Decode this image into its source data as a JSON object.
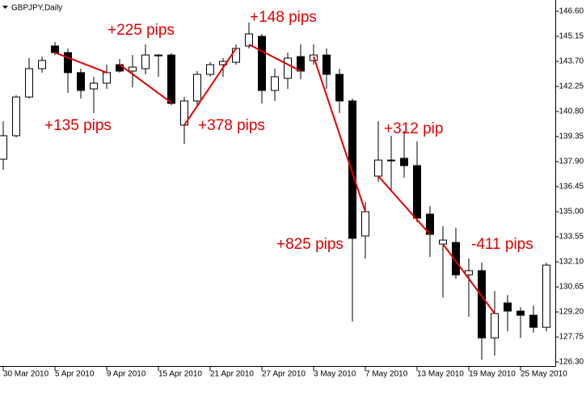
{
  "chart_data": {
    "type": "candlestick",
    "title": "GBPJPY,Daily",
    "categories": [
      "30 Mar 2010",
      null,
      null,
      null,
      "5 Apr 2010",
      null,
      null,
      null,
      "9 Apr 2010",
      null,
      null,
      null,
      "15 Apr 2010",
      null,
      null,
      null,
      "21 Apr 2010",
      null,
      null,
      null,
      "27 Apr 2010",
      null,
      null,
      null,
      "3 May 2010",
      null,
      null,
      null,
      "7 May 2010",
      null,
      null,
      null,
      "13 May 2010",
      null,
      null,
      null,
      "19 May 2010",
      null,
      null,
      null,
      "25 May 2010",
      null,
      null
    ],
    "open": [
      138.04,
      139.4,
      141.64,
      143.28,
      144.59,
      144.21,
      143.05,
      142.11,
      142.44,
      143.51,
      143.14,
      143.28,
      144.05,
      144.07,
      140.01,
      141.41,
      142.95,
      143.51,
      143.65,
      144.59,
      145.15,
      142.02,
      142.72,
      143.98,
      143.75,
      144.07,
      142.95,
      141.41,
      133.6,
      137.06,
      137.95,
      138.09,
      137.67,
      134.86,
      133.13,
      133.22,
      131.35,
      131.59,
      127.7,
      129.72,
      129.25,
      129.01,
      128.31
    ],
    "high": [
      140.24,
      141.74,
      143.89,
      143.98,
      144.82,
      144.45,
      143.28,
      142.81,
      143.51,
      143.84,
      144.07,
      144.68,
      144.12,
      144.17,
      141.64,
      143.14,
      143.65,
      143.89,
      144.68,
      145.95,
      145.29,
      143.28,
      144.21,
      144.68,
      144.68,
      144.45,
      143.28,
      141.55,
      135.56,
      140.24,
      139.4,
      139.68,
      139.07,
      135.33,
      134.16,
      134.07,
      132.29,
      132.05,
      130.42,
      130.18,
      129.48,
      129.57,
      132.05
    ],
    "low": [
      137.43,
      139.3,
      141.55,
      143.05,
      144.07,
      141.88,
      141.55,
      140.71,
      142.11,
      143.05,
      142.2,
      142.95,
      142.81,
      141.17,
      138.93,
      141.17,
      142.81,
      142.81,
      143.51,
      144.45,
      141.27,
      141.41,
      142.11,
      142.67,
      143.51,
      142.11,
      140.71,
      128.64,
      132.29,
      136.73,
      136.26,
      136.97,
      134.39,
      132.38,
      130.04,
      131.12,
      128.92,
      126.44,
      126.67,
      128.08,
      127.7,
      128.0,
      128.08
    ],
    "close": [
      139.4,
      141.64,
      143.28,
      143.75,
      144.21,
      143.05,
      142.02,
      142.44,
      143.05,
      143.14,
      143.37,
      144.07,
      144.07,
      141.27,
      141.41,
      142.95,
      143.51,
      143.7,
      144.45,
      145.29,
      142.02,
      142.81,
      143.89,
      143.14,
      144.07,
      142.95,
      141.41,
      133.46,
      135.0,
      137.99,
      137.99,
      137.67,
      134.63,
      133.69,
      133.36,
      131.35,
      131.59,
      127.7,
      129.11,
      129.25,
      129.01,
      128.31,
      131.91
    ],
    "ylim": [
      125.93,
      147.16
    ],
    "yticks": [
      {
        "value": 146.6,
        "label": "146.60"
      },
      {
        "value": 145.15,
        "label": "145.15"
      },
      {
        "value": 143.7,
        "label": "143.70"
      },
      {
        "value": 142.25,
        "label": "142.25"
      },
      {
        "value": 140.8,
        "label": "140.80"
      },
      {
        "value": 139.35,
        "label": "139.35"
      },
      {
        "value": 137.9,
        "label": "137.90"
      },
      {
        "value": 136.45,
        "label": "136.45"
      },
      {
        "value": 135.0,
        "label": "135.00"
      },
      {
        "value": 133.55,
        "label": "133.55"
      },
      {
        "value": 132.1,
        "label": "132.10"
      },
      {
        "value": 130.65,
        "label": "130.65"
      },
      {
        "value": 129.2,
        "label": "129.20"
      },
      {
        "value": 127.75,
        "label": "127.75"
      },
      {
        "value": 126.3,
        "label": "126.30"
      }
    ],
    "bull_color": "#ffffff",
    "bear_color": "#000000",
    "annotation_color": "#e00000",
    "annotations": [
      {
        "text": "+135 pips",
        "from": [
          4,
          144.21
        ],
        "to": [
          8,
          143.05
        ]
      },
      {
        "text": "+225 pips",
        "from": [
          9,
          143.51
        ],
        "to": [
          13,
          141.31
        ]
      },
      {
        "text": "+378 pips",
        "from": [
          14,
          140.01
        ],
        "to": [
          18,
          144.45
        ]
      },
      {
        "text": "+148 pips",
        "from": [
          19,
          144.68
        ],
        "to": [
          23,
          143.14
        ]
      },
      {
        "text": "+825 pips",
        "from": [
          24,
          143.98
        ],
        "to": [
          28,
          135.0
        ]
      },
      {
        "text": "+312 pip",
        "from": [
          29,
          137.06
        ],
        "to": [
          33,
          133.69
        ]
      },
      {
        "text": "-411 pips",
        "from": [
          34,
          133.13
        ],
        "to": [
          38,
          129.11
        ]
      }
    ]
  }
}
